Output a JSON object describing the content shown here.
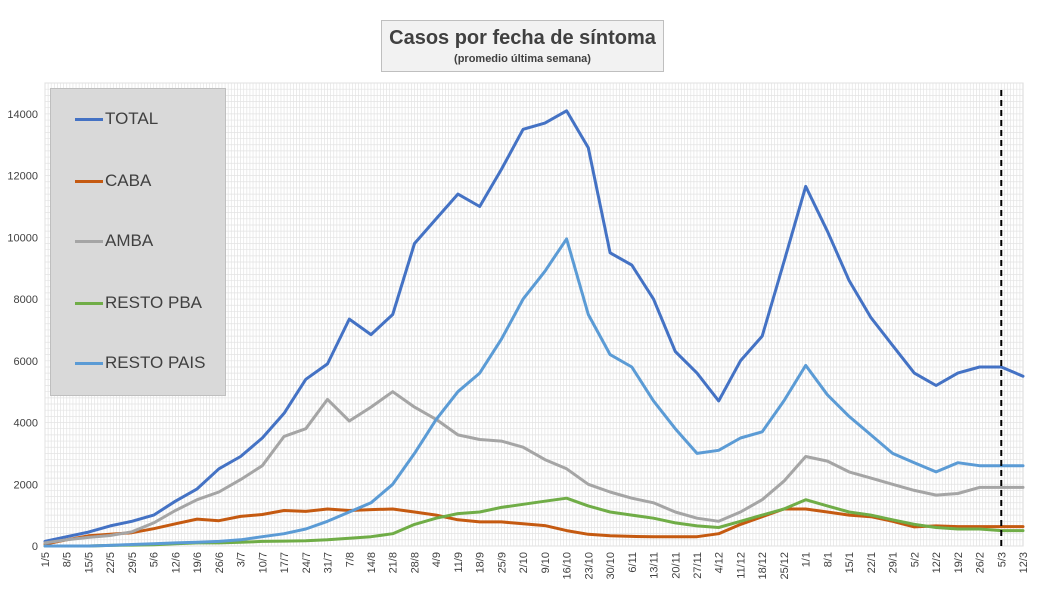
{
  "chart_data": {
    "type": "line",
    "title": "Casos por fecha de síntoma",
    "subtitle": "(promedio última semana)",
    "xlabel": "",
    "ylabel": "",
    "ylim": [
      0,
      15000
    ],
    "yticks": [
      0,
      2000,
      4000,
      6000,
      8000,
      10000,
      12000,
      14000
    ],
    "ytick_labels": [
      "0",
      "2000",
      "4000",
      "6000",
      "8000",
      "10000",
      "12000",
      "14000"
    ],
    "x_tick_labels": [
      "1/5",
      "8/5",
      "15/5",
      "22/5",
      "29/5",
      "5/6",
      "12/6",
      "19/6",
      "26/6",
      "3/7",
      "10/7",
      "17/7",
      "24/7",
      "31/7",
      "7/8",
      "14/8",
      "21/8",
      "28/8",
      "4/9",
      "11/9",
      "18/9",
      "25/9",
      "2/10",
      "9/10",
      "16/10",
      "23/10",
      "30/10",
      "6/11",
      "13/11",
      "20/11",
      "27/11",
      "4/12",
      "11/12",
      "18/12",
      "25/12",
      "1/1",
      "8/1",
      "15/1",
      "22/1",
      "29/1",
      "5/2",
      "12/2",
      "19/2",
      "26/2",
      "5/3",
      "12/3"
    ],
    "grid": true,
    "legend_position": "upper-left",
    "marker_line_x": "5/3",
    "series": [
      {
        "name": "TOTAL",
        "color": "#4472c4",
        "values": [
          150,
          300,
          450,
          650,
          800,
          1000,
          1450,
          1850,
          2500,
          2900,
          3500,
          4300,
          5400,
          5900,
          7350,
          6850,
          7500,
          9800,
          10600,
          11400,
          11000,
          12200,
          13500,
          13700,
          14100,
          12900,
          9500,
          9100,
          8000,
          6300,
          5600,
          4700,
          6000,
          6800,
          9200,
          11650,
          10200,
          8600,
          7400,
          6500,
          5600,
          5200,
          5600,
          5800,
          5800,
          5500
        ]
      },
      {
        "name": "CABA",
        "color": "#c55a11",
        "values": [
          60,
          200,
          330,
          380,
          430,
          560,
          720,
          870,
          820,
          960,
          1020,
          1150,
          1120,
          1200,
          1150,
          1180,
          1200,
          1100,
          1000,
          850,
          780,
          780,
          720,
          660,
          500,
          380,
          330,
          310,
          300,
          300,
          300,
          400,
          700,
          950,
          1200,
          1200,
          1100,
          1000,
          950,
          800,
          620,
          650,
          630,
          630,
          630,
          630
        ]
      },
      {
        "name": "AMBA",
        "color": "#a5a5a5",
        "values": [
          100,
          200,
          280,
          340,
          460,
          750,
          1150,
          1500,
          1750,
          2150,
          2600,
          3550,
          3800,
          4750,
          4050,
          4500,
          5000,
          4500,
          4100,
          3600,
          3450,
          3400,
          3200,
          2800,
          2500,
          2000,
          1750,
          1550,
          1400,
          1100,
          900,
          800,
          1100,
          1500,
          2100,
          2900,
          2750,
          2400,
          2200,
          2000,
          1800,
          1650,
          1700,
          1900,
          1900,
          1900
        ]
      },
      {
        "name": "RESTO PBA",
        "color": "#70ad47",
        "values": [
          0,
          0,
          0,
          20,
          30,
          40,
          70,
          100,
          100,
          120,
          150,
          160,
          170,
          200,
          250,
          300,
          400,
          700,
          900,
          1050,
          1100,
          1250,
          1350,
          1450,
          1550,
          1300,
          1100,
          1000,
          900,
          750,
          650,
          600,
          800,
          1000,
          1200,
          1500,
          1300,
          1100,
          1000,
          850,
          700,
          600,
          550,
          550,
          500,
          500
        ]
      },
      {
        "name": "RESTO PAIS",
        "color": "#5b9bd5",
        "values": [
          0,
          0,
          0,
          20,
          50,
          70,
          100,
          120,
          150,
          200,
          300,
          400,
          550,
          800,
          1100,
          1400,
          2000,
          3000,
          4100,
          5000,
          5600,
          6700,
          8000,
          8900,
          9950,
          7500,
          6200,
          5800,
          4700,
          3800,
          3000,
          3100,
          3500,
          3700,
          4700,
          5850,
          4900,
          4200,
          3600,
          3000,
          2700,
          2400,
          2700,
          2600,
          2600,
          2600
        ]
      }
    ]
  }
}
